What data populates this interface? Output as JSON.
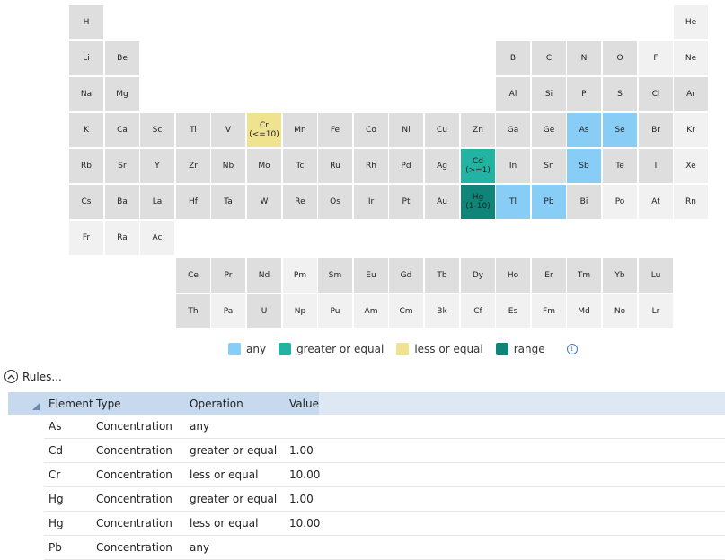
{
  "colors": {
    "any": "#87cdf5",
    "greater_or_equal": "#22b3a3",
    "less_or_equal": "#f0e38f",
    "range": "#0f8479",
    "shade_dark": "#dedede",
    "shade_light": "#f1f1f1"
  },
  "periodic_table": {
    "main_rows": [
      [
        {
          "s": "H",
          "c": 1,
          "g": "d"
        },
        {
          "s": "He",
          "c": 18,
          "g": "l"
        }
      ],
      [
        {
          "s": "Li",
          "c": 1,
          "g": "d"
        },
        {
          "s": "Be",
          "c": 2,
          "g": "d"
        },
        {
          "s": "B",
          "c": 13,
          "g": "d"
        },
        {
          "s": "C",
          "c": 14,
          "g": "d"
        },
        {
          "s": "N",
          "c": 15,
          "g": "d"
        },
        {
          "s": "O",
          "c": 16,
          "g": "d"
        },
        {
          "s": "F",
          "c": 17,
          "g": "l"
        },
        {
          "s": "Ne",
          "c": 18,
          "g": "l"
        }
      ],
      [
        {
          "s": "Na",
          "c": 1,
          "g": "d"
        },
        {
          "s": "Mg",
          "c": 2,
          "g": "d"
        },
        {
          "s": "Al",
          "c": 13,
          "g": "d"
        },
        {
          "s": "Si",
          "c": 14,
          "g": "d"
        },
        {
          "s": "P",
          "c": 15,
          "g": "d"
        },
        {
          "s": "S",
          "c": 16,
          "g": "d"
        },
        {
          "s": "Cl",
          "c": 17,
          "g": "d"
        },
        {
          "s": "Ar",
          "c": 18,
          "g": "d"
        }
      ],
      [
        {
          "s": "K",
          "c": 1,
          "g": "d"
        },
        {
          "s": "Ca",
          "c": 2,
          "g": "d"
        },
        {
          "s": "Sc",
          "c": 3,
          "g": "d"
        },
        {
          "s": "Ti",
          "c": 4,
          "g": "d"
        },
        {
          "s": "V",
          "c": 5,
          "g": "d"
        },
        {
          "s": "Cr",
          "c": 6,
          "r": "lte",
          "label": "(<=10)"
        },
        {
          "s": "Mn",
          "c": 7,
          "g": "d"
        },
        {
          "s": "Fe",
          "c": 8,
          "g": "d"
        },
        {
          "s": "Co",
          "c": 9,
          "g": "d"
        },
        {
          "s": "Ni",
          "c": 10,
          "g": "d"
        },
        {
          "s": "Cu",
          "c": 11,
          "g": "d"
        },
        {
          "s": "Zn",
          "c": 12,
          "g": "d"
        },
        {
          "s": "Ga",
          "c": 13,
          "g": "d"
        },
        {
          "s": "Ge",
          "c": 14,
          "g": "d"
        },
        {
          "s": "As",
          "c": 15,
          "r": "any"
        },
        {
          "s": "Se",
          "c": 16,
          "r": "any"
        },
        {
          "s": "Br",
          "c": 17,
          "g": "d"
        },
        {
          "s": "Kr",
          "c": 18,
          "g": "l"
        }
      ],
      [
        {
          "s": "Rb",
          "c": 1,
          "g": "d"
        },
        {
          "s": "Sr",
          "c": 2,
          "g": "d"
        },
        {
          "s": "Y",
          "c": 3,
          "g": "d"
        },
        {
          "s": "Zr",
          "c": 4,
          "g": "d"
        },
        {
          "s": "Nb",
          "c": 5,
          "g": "d"
        },
        {
          "s": "Mo",
          "c": 6,
          "g": "d"
        },
        {
          "s": "Tc",
          "c": 7,
          "g": "d"
        },
        {
          "s": "Ru",
          "c": 8,
          "g": "d"
        },
        {
          "s": "Rh",
          "c": 9,
          "g": "d"
        },
        {
          "s": "Pd",
          "c": 10,
          "g": "d"
        },
        {
          "s": "Ag",
          "c": 11,
          "g": "d"
        },
        {
          "s": "Cd",
          "c": 12,
          "r": "gte",
          "label": "(>=1)"
        },
        {
          "s": "In",
          "c": 13,
          "g": "d"
        },
        {
          "s": "Sn",
          "c": 14,
          "g": "d"
        },
        {
          "s": "Sb",
          "c": 15,
          "r": "any"
        },
        {
          "s": "Te",
          "c": 16,
          "g": "d"
        },
        {
          "s": "I",
          "c": 17,
          "g": "d"
        },
        {
          "s": "Xe",
          "c": 18,
          "g": "l"
        }
      ],
      [
        {
          "s": "Cs",
          "c": 1,
          "g": "d"
        },
        {
          "s": "Ba",
          "c": 2,
          "g": "d"
        },
        {
          "s": "La",
          "c": 3,
          "g": "d"
        },
        {
          "s": "Hf",
          "c": 4,
          "g": "d"
        },
        {
          "s": "Ta",
          "c": 5,
          "g": "d"
        },
        {
          "s": "W",
          "c": 6,
          "g": "d"
        },
        {
          "s": "Re",
          "c": 7,
          "g": "d"
        },
        {
          "s": "Os",
          "c": 8,
          "g": "d"
        },
        {
          "s": "Ir",
          "c": 9,
          "g": "d"
        },
        {
          "s": "Pt",
          "c": 10,
          "g": "d"
        },
        {
          "s": "Au",
          "c": 11,
          "g": "d"
        },
        {
          "s": "Hg",
          "c": 12,
          "r": "range",
          "label": "(1-10)"
        },
        {
          "s": "Tl",
          "c": 13,
          "r": "any"
        },
        {
          "s": "Pb",
          "c": 14,
          "r": "any"
        },
        {
          "s": "Bi",
          "c": 15,
          "g": "d"
        },
        {
          "s": "Po",
          "c": 16,
          "g": "l"
        },
        {
          "s": "At",
          "c": 17,
          "g": "l"
        },
        {
          "s": "Rn",
          "c": 18,
          "g": "l"
        }
      ],
      [
        {
          "s": "Fr",
          "c": 1,
          "g": "l"
        },
        {
          "s": "Ra",
          "c": 2,
          "g": "l"
        },
        {
          "s": "Ac",
          "c": 3,
          "g": "l"
        }
      ]
    ],
    "lanthanides": [
      {
        "s": "Ce",
        "g": "d"
      },
      {
        "s": "Pr",
        "g": "d"
      },
      {
        "s": "Nd",
        "g": "d"
      },
      {
        "s": "Pm",
        "g": "l"
      },
      {
        "s": "Sm",
        "g": "d"
      },
      {
        "s": "Eu",
        "g": "d"
      },
      {
        "s": "Gd",
        "g": "d"
      },
      {
        "s": "Tb",
        "g": "d"
      },
      {
        "s": "Dy",
        "g": "d"
      },
      {
        "s": "Ho",
        "g": "d"
      },
      {
        "s": "Er",
        "g": "d"
      },
      {
        "s": "Tm",
        "g": "d"
      },
      {
        "s": "Yb",
        "g": "d"
      },
      {
        "s": "Lu",
        "g": "d"
      }
    ],
    "actinides": [
      {
        "s": "Th",
        "g": "d"
      },
      {
        "s": "Pa",
        "g": "l"
      },
      {
        "s": "U",
        "g": "d"
      },
      {
        "s": "Np",
        "g": "l"
      },
      {
        "s": "Pu",
        "g": "l"
      },
      {
        "s": "Am",
        "g": "l"
      },
      {
        "s": "Cm",
        "g": "l"
      },
      {
        "s": "Bk",
        "g": "l"
      },
      {
        "s": "Cf",
        "g": "l"
      },
      {
        "s": "Es",
        "g": "l"
      },
      {
        "s": "Fm",
        "g": "l"
      },
      {
        "s": "Md",
        "g": "l"
      },
      {
        "s": "No",
        "g": "l"
      },
      {
        "s": "Lr",
        "g": "l"
      }
    ]
  },
  "legend": {
    "any": "any",
    "greater_or_equal": "greater or equal",
    "less_or_equal": "less or equal",
    "range": "range",
    "info_icon": "info-icon",
    "info_glyph": "i"
  },
  "rules_section": {
    "title": "Rules...",
    "toggle_icon": "chevron-up-circle-icon",
    "columns": {
      "element": "Element",
      "type": "Type",
      "operation": "Operation",
      "value": "Value"
    },
    "rows": [
      {
        "element": "As",
        "type": "Concentration",
        "operation": "any",
        "value": ""
      },
      {
        "element": "Cd",
        "type": "Concentration",
        "operation": "greater or equal",
        "value": "1.00"
      },
      {
        "element": "Cr",
        "type": "Concentration",
        "operation": "less or equal",
        "value": "10.00"
      },
      {
        "element": "Hg",
        "type": "Concentration",
        "operation": "greater or equal",
        "value": "1.00"
      },
      {
        "element": "Hg",
        "type": "Concentration",
        "operation": "less or equal",
        "value": "10.00"
      },
      {
        "element": "Pb",
        "type": "Concentration",
        "operation": "any",
        "value": ""
      }
    ]
  }
}
